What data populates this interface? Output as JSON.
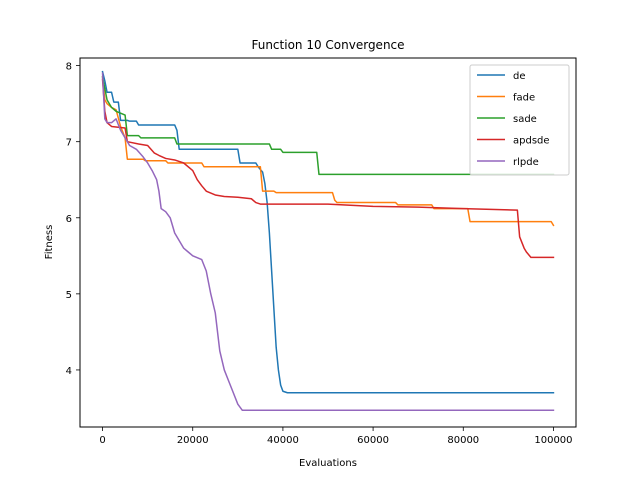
{
  "chart_data": {
    "type": "line",
    "title": "Function 10 Convergence",
    "xlabel": "Evaluations",
    "ylabel": "Fitness",
    "xlim": [
      -5000,
      105000
    ],
    "ylim": [
      3.25,
      8.1
    ],
    "xticks": [
      0,
      20000,
      40000,
      60000,
      80000,
      100000
    ],
    "xtick_labels": [
      "0",
      "20000",
      "40000",
      "60000",
      "80000",
      "100000"
    ],
    "yticks": [
      4,
      5,
      6,
      7,
      8
    ],
    "ytick_labels": [
      "4",
      "5",
      "6",
      "7",
      "8"
    ],
    "grid": false,
    "legend_position": "top-right",
    "series": [
      {
        "name": "de",
        "color": "#1f77b4",
        "points": [
          [
            0,
            7.92
          ],
          [
            500,
            7.8
          ],
          [
            1000,
            7.65
          ],
          [
            2000,
            7.65
          ],
          [
            2500,
            7.52
          ],
          [
            3500,
            7.52
          ],
          [
            4000,
            7.28
          ],
          [
            5500,
            7.28
          ],
          [
            6000,
            7.27
          ],
          [
            7500,
            7.27
          ],
          [
            8000,
            7.22
          ],
          [
            16000,
            7.22
          ],
          [
            16500,
            7.15
          ],
          [
            17000,
            6.9
          ],
          [
            30000,
            6.9
          ],
          [
            30500,
            6.72
          ],
          [
            34000,
            6.72
          ],
          [
            34500,
            6.67
          ],
          [
            35500,
            6.6
          ],
          [
            36000,
            6.45
          ],
          [
            36500,
            6.2
          ],
          [
            37000,
            5.8
          ],
          [
            37500,
            5.3
          ],
          [
            38000,
            4.8
          ],
          [
            38500,
            4.3
          ],
          [
            39000,
            4.0
          ],
          [
            39500,
            3.8
          ],
          [
            40000,
            3.72
          ],
          [
            41000,
            3.7
          ],
          [
            100000,
            3.7
          ]
        ]
      },
      {
        "name": "fade",
        "color": "#ff7f0e",
        "points": [
          [
            0,
            7.85
          ],
          [
            500,
            7.55
          ],
          [
            1000,
            7.5
          ],
          [
            2000,
            7.45
          ],
          [
            3000,
            7.42
          ],
          [
            4000,
            7.2
          ],
          [
            5000,
            7.05
          ],
          [
            5500,
            6.77
          ],
          [
            9000,
            6.77
          ],
          [
            9500,
            6.75
          ],
          [
            14000,
            6.75
          ],
          [
            14500,
            6.72
          ],
          [
            22000,
            6.72
          ],
          [
            22500,
            6.67
          ],
          [
            35000,
            6.67
          ],
          [
            35500,
            6.35
          ],
          [
            38000,
            6.35
          ],
          [
            38500,
            6.33
          ],
          [
            51000,
            6.33
          ],
          [
            51500,
            6.23
          ],
          [
            52000,
            6.2
          ],
          [
            65000,
            6.2
          ],
          [
            65500,
            6.17
          ],
          [
            73000,
            6.17
          ],
          [
            73500,
            6.12
          ],
          [
            81000,
            6.12
          ],
          [
            81500,
            5.95
          ],
          [
            99500,
            5.95
          ],
          [
            100000,
            5.9
          ]
        ]
      },
      {
        "name": "sade",
        "color": "#2ca02c",
        "points": [
          [
            0,
            7.85
          ],
          [
            1000,
            7.55
          ],
          [
            2000,
            7.45
          ],
          [
            3000,
            7.4
          ],
          [
            5000,
            7.35
          ],
          [
            5500,
            7.08
          ],
          [
            8000,
            7.08
          ],
          [
            8500,
            7.05
          ],
          [
            16000,
            7.05
          ],
          [
            16500,
            6.97
          ],
          [
            37000,
            6.97
          ],
          [
            37500,
            6.9
          ],
          [
            39500,
            6.9
          ],
          [
            40000,
            6.86
          ],
          [
            47500,
            6.86
          ],
          [
            48000,
            6.57
          ],
          [
            100000,
            6.57
          ]
        ]
      },
      {
        "name": "apdsde",
        "color": "#d62728",
        "points": [
          [
            0,
            7.82
          ],
          [
            500,
            7.4
          ],
          [
            1000,
            7.25
          ],
          [
            2000,
            7.2
          ],
          [
            5000,
            7.18
          ],
          [
            5500,
            7.0
          ],
          [
            8000,
            6.97
          ],
          [
            10000,
            6.95
          ],
          [
            11500,
            6.85
          ],
          [
            12500,
            6.82
          ],
          [
            14000,
            6.78
          ],
          [
            16000,
            6.76
          ],
          [
            18000,
            6.72
          ],
          [
            20000,
            6.62
          ],
          [
            21000,
            6.5
          ],
          [
            22000,
            6.42
          ],
          [
            23000,
            6.35
          ],
          [
            25000,
            6.3
          ],
          [
            27000,
            6.28
          ],
          [
            30000,
            6.27
          ],
          [
            33000,
            6.25
          ],
          [
            34000,
            6.2
          ],
          [
            35000,
            6.18
          ],
          [
            50000,
            6.18
          ],
          [
            60000,
            6.15
          ],
          [
            70000,
            6.14
          ],
          [
            80000,
            6.12
          ],
          [
            92000,
            6.1
          ],
          [
            92500,
            5.75
          ],
          [
            93500,
            5.6
          ],
          [
            94000,
            5.55
          ],
          [
            95000,
            5.48
          ],
          [
            100000,
            5.48
          ]
        ]
      },
      {
        "name": "rlpde",
        "color": "#9467bd",
        "points": [
          [
            0,
            7.9
          ],
          [
            500,
            7.3
          ],
          [
            1000,
            7.25
          ],
          [
            2000,
            7.25
          ],
          [
            3000,
            7.3
          ],
          [
            4000,
            7.15
          ],
          [
            5000,
            7.05
          ],
          [
            6000,
            6.95
          ],
          [
            7500,
            6.9
          ],
          [
            9000,
            6.8
          ],
          [
            10000,
            6.72
          ],
          [
            11000,
            6.62
          ],
          [
            12000,
            6.5
          ],
          [
            12500,
            6.35
          ],
          [
            13000,
            6.12
          ],
          [
            14000,
            6.08
          ],
          [
            15000,
            6.0
          ],
          [
            16000,
            5.8
          ],
          [
            17000,
            5.7
          ],
          [
            18000,
            5.6
          ],
          [
            19000,
            5.55
          ],
          [
            20000,
            5.5
          ],
          [
            22000,
            5.45
          ],
          [
            23000,
            5.3
          ],
          [
            24000,
            5.0
          ],
          [
            25000,
            4.75
          ],
          [
            26000,
            4.25
          ],
          [
            27000,
            4.0
          ],
          [
            28000,
            3.85
          ],
          [
            29000,
            3.7
          ],
          [
            30000,
            3.55
          ],
          [
            31000,
            3.47
          ],
          [
            100000,
            3.47
          ]
        ]
      }
    ]
  }
}
